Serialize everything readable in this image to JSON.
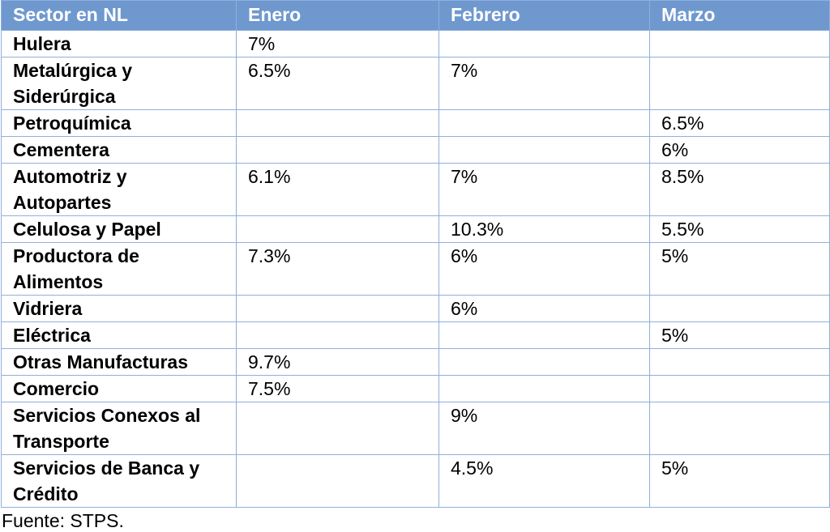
{
  "table": {
    "header": [
      "Sector en NL",
      "Enero",
      "Febrero",
      "Marzo"
    ],
    "rows": [
      [
        "Hulera",
        "7%",
        null,
        null
      ],
      [
        "Metalúrgica y Siderúrgica",
        "6.5%",
        "7%",
        null
      ],
      [
        "Petroquímica",
        null,
        null,
        "6.5%"
      ],
      [
        "Cementera",
        null,
        null,
        "6%"
      ],
      [
        "Automotriz y Autopartes",
        "6.1%",
        "7%",
        "8.5%"
      ],
      [
        "Celulosa y Papel",
        null,
        "10.3%",
        "5.5%"
      ],
      [
        "Productora de Alimentos",
        "7.3%",
        "6%",
        "5%"
      ],
      [
        "Vidriera",
        null,
        "6%",
        null
      ],
      [
        "Eléctrica",
        null,
        null,
        "5%"
      ],
      [
        "Otras Manufacturas",
        "9.7%",
        null,
        null
      ],
      [
        "Comercio",
        "7.5%",
        null,
        null
      ],
      [
        "Servicios Conexos al Transporte",
        null,
        "9%",
        null
      ],
      [
        "Servicios de Banca y Crédito",
        null,
        "4.5%",
        "5%"
      ]
    ]
  },
  "footer": "Fuente: STPS."
}
